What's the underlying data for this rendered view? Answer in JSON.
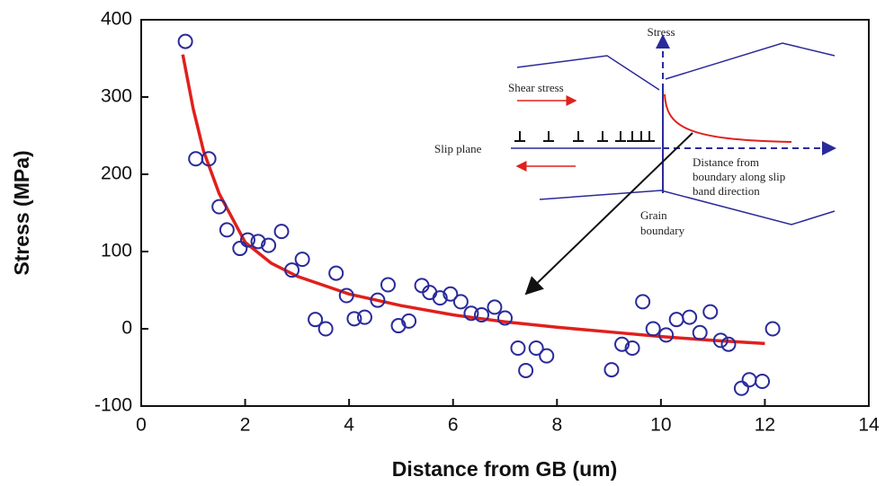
{
  "chart_data": {
    "type": "scatter",
    "x_label": "Distance from GB (um)",
    "y_label": "Stress (MPa)",
    "xlim": [
      0,
      14
    ],
    "ylim": [
      -100,
      400
    ],
    "xticks": [
      0,
      2,
      4,
      6,
      8,
      10,
      12,
      14
    ],
    "yticks": [
      -100,
      0,
      100,
      200,
      300,
      400
    ],
    "x": [
      0.85,
      1.05,
      1.3,
      1.5,
      1.65,
      1.9,
      2.05,
      2.25,
      2.45,
      2.7,
      2.9,
      3.1,
      3.35,
      3.55,
      3.75,
      3.95,
      4.1,
      4.3,
      4.55,
      4.75,
      4.95,
      5.15,
      5.4,
      5.55,
      5.75,
      5.95,
      6.15,
      6.35,
      6.55,
      6.8,
      7.0,
      7.25,
      7.4,
      7.6,
      7.8,
      9.05,
      9.25,
      9.45,
      9.65,
      9.85,
      10.1,
      10.3,
      10.55,
      10.75,
      10.95,
      11.15,
      11.3,
      11.55,
      11.7,
      11.95,
      12.15
    ],
    "values": [
      372,
      220,
      220,
      158,
      128,
      104,
      115,
      113,
      108,
      126,
      76,
      90,
      12,
      0,
      72,
      43,
      13,
      15,
      37,
      57,
      4,
      10,
      56,
      47,
      40,
      45,
      35,
      20,
      18,
      28,
      14,
      -25,
      -54,
      -25,
      -35,
      -53,
      -20,
      -25,
      35,
      0,
      -8,
      12,
      15,
      -5,
      22,
      -15,
      -20,
      -77,
      -66,
      -68,
      0
    ],
    "color": "#2a2a9a",
    "fit": {
      "color": "#e0201c",
      "x": [
        0.8,
        1,
        1.2,
        1.5,
        2,
        2.5,
        3,
        4,
        5,
        6,
        7,
        8,
        9,
        10,
        11,
        12
      ],
      "values": [
        355,
        285,
        230,
        175,
        112,
        85,
        68,
        45,
        30,
        18,
        9,
        2,
        -4,
        -10,
        -15,
        -19
      ]
    },
    "inset": {
      "stress": "Stress",
      "shear_stress": "Shear stress",
      "slip_plane": "Slip plane",
      "distance": [
        "Distance from",
        "boundary along slip",
        "band direction"
      ],
      "grain_boundary": [
        "Grain",
        "boundary"
      ]
    }
  }
}
